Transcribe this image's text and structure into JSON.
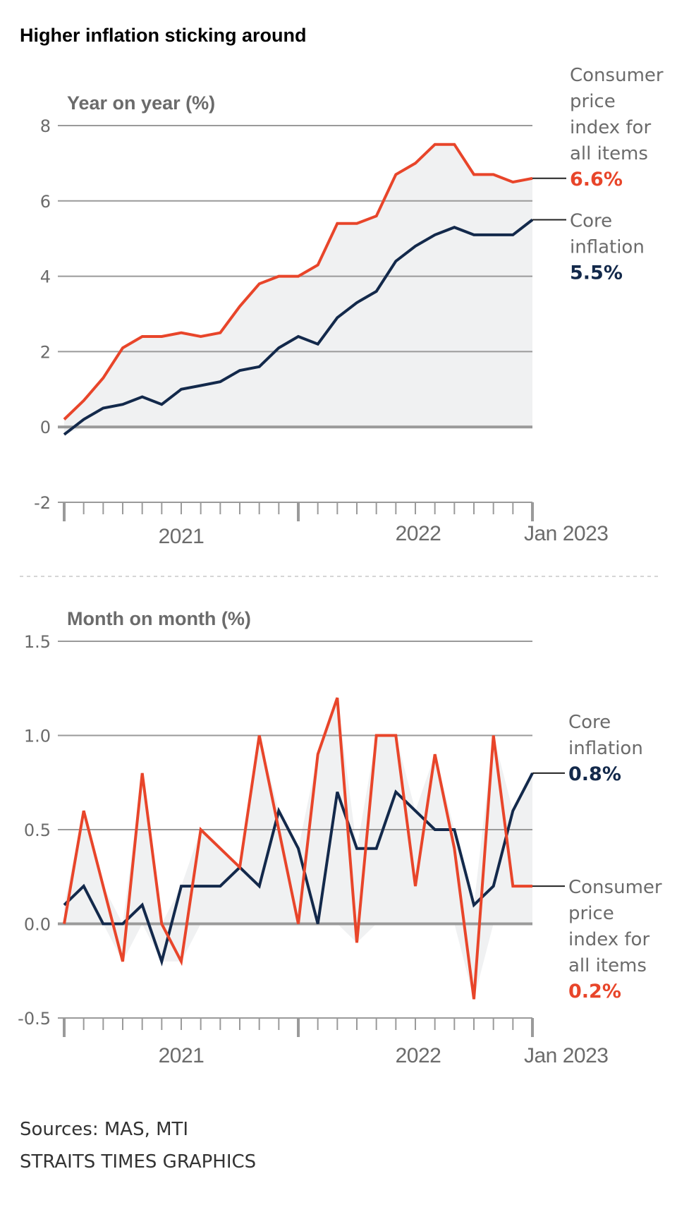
{
  "title": "Higher inflation sticking around",
  "colors": {
    "cpi": "#e8452a",
    "core": "#13294b",
    "text": "#6b6b6b",
    "grid": "#9a9a9a",
    "band": "#f0f1f2"
  },
  "footer": {
    "sources": "Sources: MAS, MTI",
    "credit": "STRAITS TIMES GRAPHICS"
  },
  "chart_data": [
    {
      "type": "line",
      "title": "Year on year (%)",
      "xlabel": "",
      "ylabel": "Year on year (%)",
      "ylim": [
        -2,
        8
      ],
      "yticks": [
        {
          "value": 8,
          "label": "8"
        },
        {
          "value": 6,
          "label": "6"
        },
        {
          "value": 4,
          "label": "4"
        },
        {
          "value": 2,
          "label": "2"
        },
        {
          "value": 0,
          "label": "0"
        },
        {
          "value": -2,
          "label": "-2"
        }
      ],
      "grid": true,
      "x": [
        "Jan 2021",
        "Feb 2021",
        "Mar 2021",
        "Apr 2021",
        "May 2021",
        "Jun 2021",
        "Jul 2021",
        "Aug 2021",
        "Sep 2021",
        "Oct 2021",
        "Nov 2021",
        "Dec 2021",
        "Jan 2022",
        "Feb 2022",
        "Mar 2022",
        "Apr 2022",
        "May 2022",
        "Jun 2022",
        "Jul 2022",
        "Aug 2022",
        "Sep 2022",
        "Oct 2022",
        "Nov 2022",
        "Dec 2022",
        "Jan 2023"
      ],
      "xtick_labels": [
        {
          "label": "2021",
          "span": [
            0,
            12
          ]
        },
        {
          "label": "2022",
          "span": [
            12,
            24
          ]
        },
        {
          "label": "Jan 2023",
          "at": 24
        }
      ],
      "series": [
        {
          "key": "cpi",
          "name": "Consumer price index for all items",
          "label_lines": [
            "Consumer",
            "price",
            "index for",
            "all items"
          ],
          "end_label": "6.6%",
          "values": [
            0.2,
            0.7,
            1.3,
            2.1,
            2.4,
            2.4,
            2.5,
            2.4,
            2.5,
            3.2,
            3.8,
            4.0,
            4.0,
            4.3,
            5.4,
            5.4,
            5.6,
            6.7,
            7.0,
            7.5,
            7.5,
            6.7,
            6.7,
            6.5,
            6.6
          ]
        },
        {
          "key": "core",
          "name": "Core inflation",
          "label_lines": [
            "Core",
            "inflation"
          ],
          "end_label": "5.5%",
          "values": [
            -0.2,
            0.2,
            0.5,
            0.6,
            0.8,
            0.6,
            1.0,
            1.1,
            1.2,
            1.5,
            1.6,
            2.1,
            2.4,
            2.2,
            2.9,
            3.3,
            3.6,
            4.4,
            4.8,
            5.1,
            5.3,
            5.1,
            5.1,
            5.1,
            5.5
          ]
        }
      ],
      "legend": "right"
    },
    {
      "type": "line",
      "title": "Month on month (%)",
      "xlabel": "",
      "ylabel": "Month on month (%)",
      "ylim": [
        -0.5,
        1.5
      ],
      "yticks": [
        {
          "value": 1.5,
          "label": "1.5"
        },
        {
          "value": 1.0,
          "label": "1.0"
        },
        {
          "value": 0.5,
          "label": "0.5"
        },
        {
          "value": 0.0,
          "label": "0.0"
        },
        {
          "value": -0.5,
          "label": "-0.5"
        }
      ],
      "grid": true,
      "x": [
        "Jan 2021",
        "Feb 2021",
        "Mar 2021",
        "Apr 2021",
        "May 2021",
        "Jun 2021",
        "Jul 2021",
        "Aug 2021",
        "Sep 2021",
        "Oct 2021",
        "Nov 2021",
        "Dec 2021",
        "Jan 2022",
        "Feb 2022",
        "Mar 2022",
        "Apr 2022",
        "May 2022",
        "Jun 2022",
        "Jul 2022",
        "Aug 2022",
        "Sep 2022",
        "Oct 2022",
        "Nov 2022",
        "Dec 2022",
        "Jan 2023"
      ],
      "xtick_labels": [
        {
          "label": "2021",
          "span": [
            0,
            12
          ]
        },
        {
          "label": "2022",
          "span": [
            12,
            24
          ]
        },
        {
          "label": "Jan 2023",
          "at": 24
        }
      ],
      "series": [
        {
          "key": "core",
          "name": "Core inflation",
          "label_lines": [
            "Core",
            "inflation"
          ],
          "end_label": "0.8%",
          "values": [
            0.1,
            0.2,
            0.0,
            0.0,
            0.1,
            -0.2,
            0.2,
            0.2,
            0.2,
            0.3,
            0.2,
            0.6,
            0.4,
            0.0,
            0.7,
            0.4,
            0.4,
            0.7,
            0.6,
            0.5,
            0.5,
            0.1,
            0.2,
            0.6,
            0.8
          ]
        },
        {
          "key": "cpi",
          "name": "Consumer price index for all items",
          "label_lines": [
            "Consumer",
            "price",
            "index for",
            "all items"
          ],
          "end_label": "0.2%",
          "values": [
            0.0,
            0.6,
            0.2,
            -0.2,
            0.8,
            0.0,
            -0.2,
            0.5,
            0.4,
            0.3,
            1.0,
            0.5,
            0.0,
            0.9,
            1.2,
            -0.1,
            1.0,
            1.0,
            0.2,
            0.9,
            0.4,
            -0.4,
            1.0,
            0.2,
            0.2
          ]
        }
      ],
      "legend": "right"
    }
  ]
}
